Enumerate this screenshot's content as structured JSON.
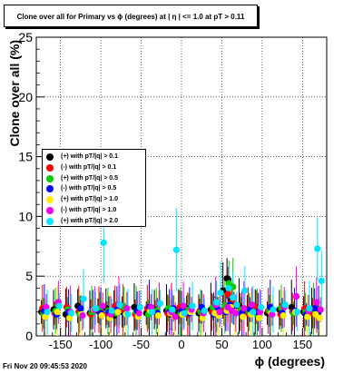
{
  "chart_data": {
    "type": "scatter",
    "title": "Clone  over all for Primary vs ϕ (degrees) at | η | <= 1.0 at pT > 0.11",
    "xlabel": "ϕ (degrees)",
    "ylabel": "Clone  over all (%)",
    "xlim": [
      -180,
      180
    ],
    "ylim": [
      0,
      25
    ],
    "xticks": [
      -150,
      -100,
      -50,
      0,
      50,
      100,
      150
    ],
    "yticks": [
      0,
      5,
      10,
      15,
      20,
      25
    ],
    "grid": true,
    "legend_position": "middle-left",
    "x": [
      -170,
      -155,
      -140,
      -125,
      -110,
      -100,
      -90,
      -80,
      -70,
      -55,
      -40,
      -30,
      -15,
      -10,
      0,
      10,
      25,
      40,
      45,
      55,
      60,
      65,
      75,
      85,
      95,
      110,
      125,
      140,
      155,
      165,
      170
    ],
    "series": [
      {
        "name": "(+) with pT/|q| > 0.1",
        "color": "#000000",
        "values": [
          2.0,
          2.2,
          1.8,
          2.5,
          1.9,
          2.1,
          2.3,
          1.7,
          2.0,
          2.4,
          1.9,
          2.2,
          2.1,
          1.8,
          2.0,
          2.3,
          1.9,
          2.2,
          2.0,
          3.8,
          4.8,
          3.0,
          2.5,
          2.1,
          2.0,
          1.9,
          2.2,
          2.4,
          2.0,
          2.1,
          1.9
        ]
      },
      {
        "name": "(-) with pT/|q| > 0.1",
        "color": "#ff0000",
        "values": [
          2.3,
          1.9,
          2.4,
          2.0,
          1.8,
          2.2,
          1.9,
          2.5,
          2.1,
          1.8,
          2.3,
          2.0,
          1.9,
          2.2,
          2.4,
          1.8,
          2.1,
          2.0,
          2.3,
          2.2,
          3.5,
          2.8,
          2.0,
          1.9,
          2.4,
          2.1,
          1.8,
          2.0,
          2.3,
          1.9,
          2.2
        ]
      },
      {
        "name": "(+) with pT/|q| > 0.5",
        "color": "#00cc00",
        "values": [
          1.9,
          2.1,
          2.2,
          1.8,
          2.0,
          2.3,
          2.1,
          1.9,
          2.4,
          2.0,
          1.8,
          2.1,
          2.3,
          2.0,
          1.9,
          2.2,
          2.0,
          2.4,
          1.9,
          2.5,
          4.4,
          4.1,
          2.2,
          2.0,
          1.8,
          2.1,
          2.3,
          1.9,
          2.0,
          2.2,
          1.8
        ]
      },
      {
        "name": "(-) with pT/|q| > 0.5",
        "color": "#0000ff",
        "values": [
          2.1,
          1.8,
          2.0,
          2.3,
          2.2,
          1.9,
          2.0,
          2.2,
          1.8,
          2.1,
          2.4,
          1.9,
          2.0,
          2.3,
          2.1,
          1.9,
          2.4,
          1.8,
          2.2,
          2.0,
          2.6,
          2.3,
          1.9,
          2.2,
          2.0,
          2.4,
          1.9,
          2.1,
          1.8,
          2.3,
          2.0
        ]
      },
      {
        "name": "(+) with pT/|q| > 1.0",
        "color": "#ffee00",
        "values": [
          1.6,
          2.0,
          1.5,
          1.8,
          2.2,
          1.7,
          1.5,
          2.0,
          1.8,
          1.6,
          2.1,
          1.7,
          1.9,
          1.6,
          1.8,
          2.0,
          1.5,
          1.9,
          1.7,
          2.1,
          2.4,
          2.0,
          1.6,
          1.8,
          1.5,
          1.9,
          1.7,
          2.0,
          1.6,
          1.8,
          1.5
        ]
      },
      {
        "name": "(-) with pT/|q| > 1.0",
        "color": "#ee00ee",
        "values": [
          2.4,
          2.8,
          2.0,
          1.7,
          2.2,
          2.5,
          1.8,
          2.6,
          2.3,
          1.9,
          2.4,
          2.7,
          2.0,
          1.6,
          2.5,
          2.2,
          1.9,
          2.6,
          2.0,
          2.4,
          2.1,
          1.9,
          2.3,
          2.6,
          2.0,
          1.8,
          2.4,
          3.3,
          2.1,
          2.8,
          2.2
        ]
      },
      {
        "name": "(+) with pT/|q| > 2.0",
        "color": "#00e5ff",
        "values": [
          2.0,
          2.5,
          1.9,
          3.1,
          2.3,
          7.8,
          2.1,
          2.6,
          1.8,
          2.4,
          2.0,
          2.7,
          2.2,
          7.2,
          1.9,
          2.5,
          2.1,
          2.8,
          3.6,
          4.0,
          3.2,
          2.6,
          3.8,
          2.0,
          2.4,
          2.2,
          2.6,
          2.0,
          2.3,
          7.3,
          4.6
        ]
      }
    ]
  },
  "footer": {
    "timestamp": "Fri Nov 20 09:45:53 2020"
  }
}
